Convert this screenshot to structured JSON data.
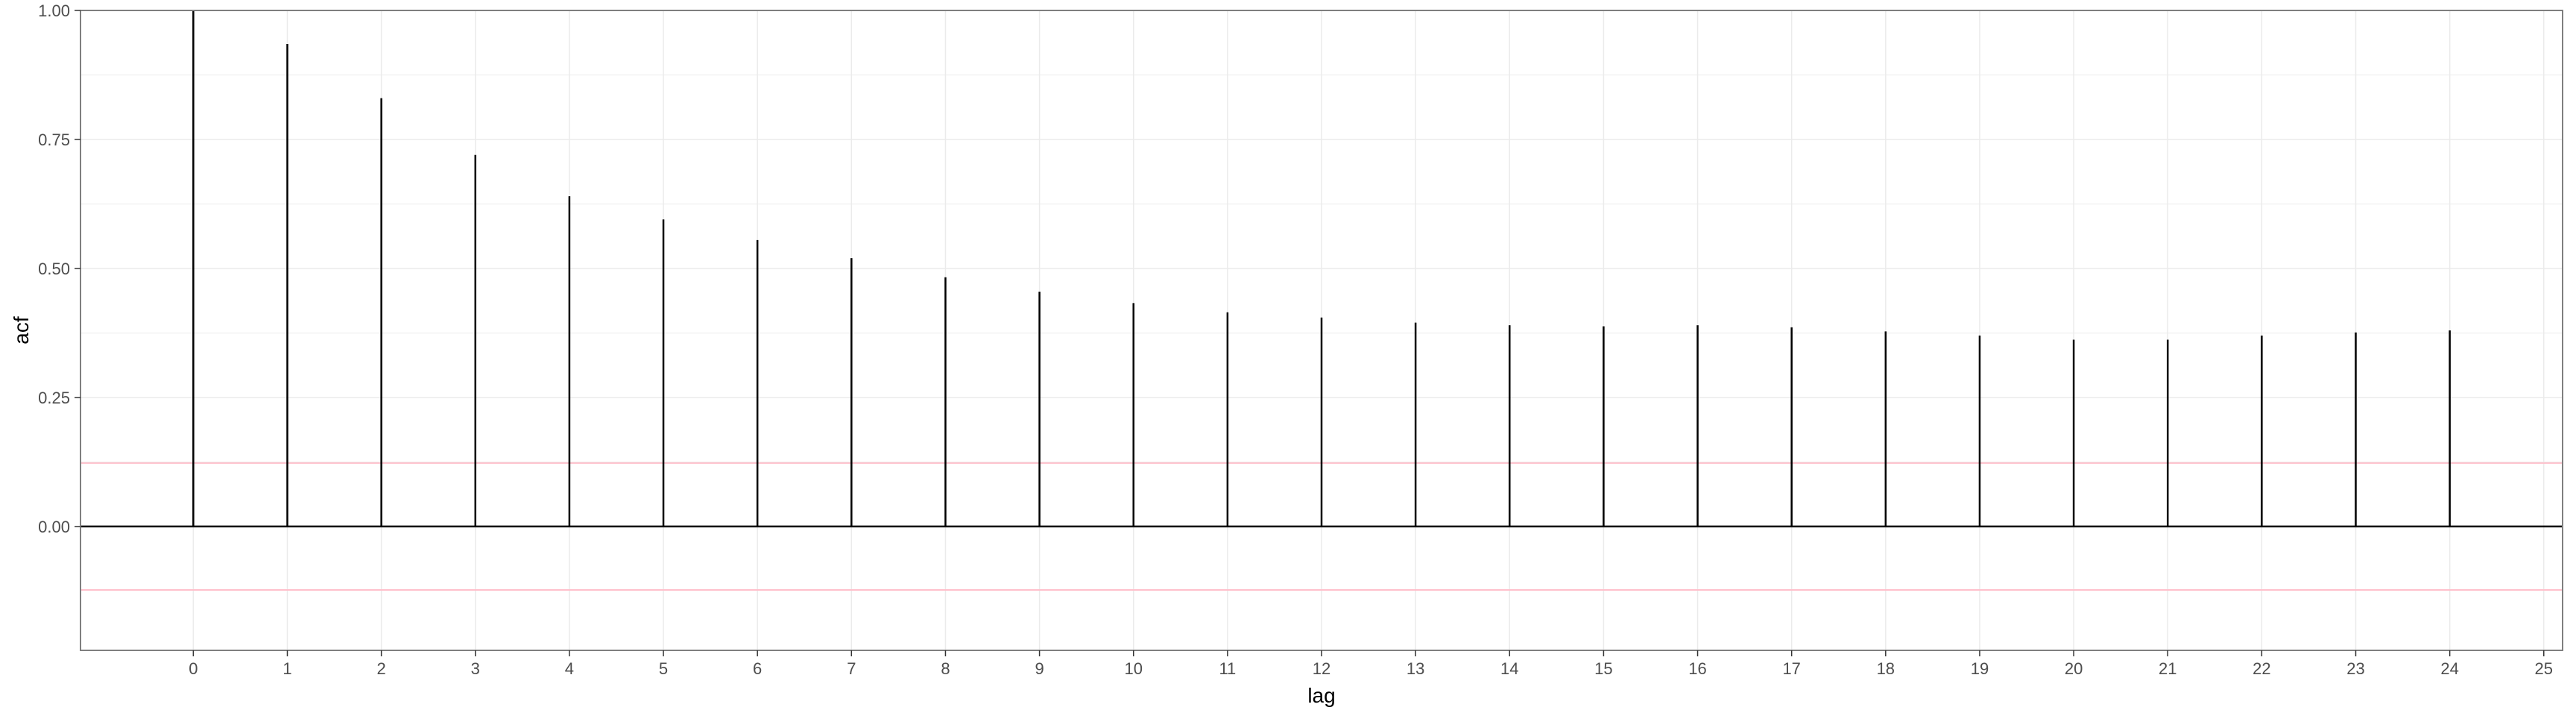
{
  "chart_data": {
    "type": "bar",
    "style": "acf-stem",
    "xlabel": "lag",
    "ylabel": "acf",
    "x": [
      0,
      1,
      2,
      3,
      4,
      5,
      6,
      7,
      8,
      9,
      10,
      11,
      12,
      13,
      14,
      15,
      16,
      17,
      18,
      19,
      20,
      21,
      22,
      23,
      24
    ],
    "values": [
      1.0,
      0.935,
      0.83,
      0.72,
      0.64,
      0.595,
      0.555,
      0.52,
      0.483,
      0.455,
      0.433,
      0.415,
      0.405,
      0.395,
      0.39,
      0.388,
      0.39,
      0.386,
      0.378,
      0.37,
      0.362,
      0.362,
      0.37,
      0.376,
      0.38
    ],
    "xlim": [
      -1.2,
      25.2
    ],
    "ylim": [
      -0.24,
      1.0
    ],
    "x_ticks": [
      0,
      1,
      2,
      3,
      4,
      5,
      6,
      7,
      8,
      9,
      10,
      11,
      12,
      13,
      14,
      15,
      16,
      17,
      18,
      19,
      20,
      21,
      22,
      23,
      24,
      25
    ],
    "x_tick_labels": [
      "0",
      "1",
      "2",
      "3",
      "4",
      "5",
      "6",
      "7",
      "8",
      "9",
      "10",
      "11",
      "12",
      "13",
      "14",
      "15",
      "16",
      "17",
      "18",
      "19",
      "20",
      "21",
      "22",
      "23",
      "24",
      "25"
    ],
    "y_ticks": [
      0.0,
      0.25,
      0.5,
      0.75,
      1.0
    ],
    "y_tick_labels": [
      "0.00",
      "0.25",
      "0.50",
      "0.75",
      "1.00"
    ],
    "confidence_bounds": [
      0.123,
      -0.123
    ],
    "zero_line": 0,
    "grid": true,
    "colors": {
      "stems": "#000000",
      "zero_line": "#000000",
      "confidence_bounds": "#ffc0cb",
      "grid": "#ebebeb",
      "panel_border": "#7f7f7f",
      "tick_label": "#4d4d4d"
    }
  }
}
